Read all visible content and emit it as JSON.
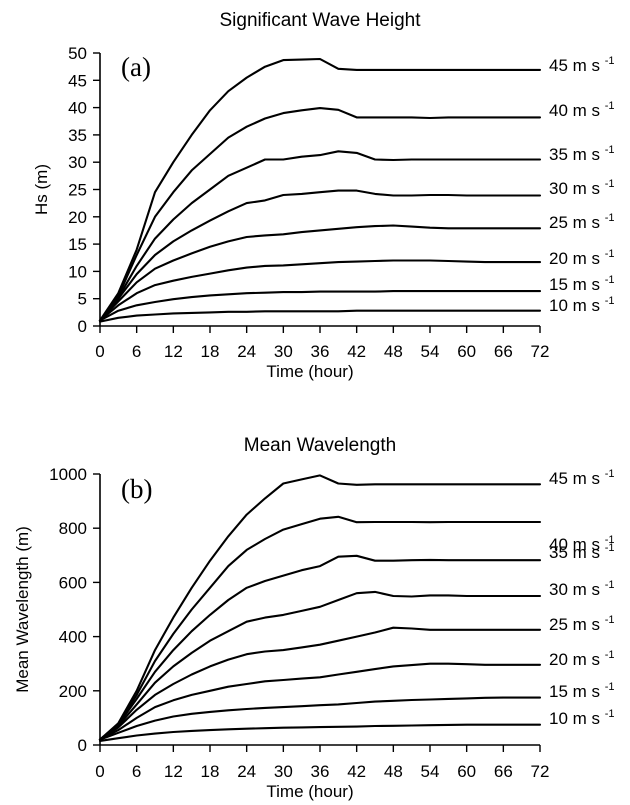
{
  "chart_data": [
    {
      "type": "line",
      "title": "Significant Wave Height",
      "panel_label": "(a)",
      "xlabel": "Time (hour)",
      "ylabel": "Hs (m)",
      "xlim": [
        0,
        72
      ],
      "ylim": [
        0,
        50
      ],
      "xticks": [
        0,
        6,
        12,
        18,
        24,
        30,
        36,
        42,
        48,
        54,
        60,
        66,
        72
      ],
      "yticks": [
        0,
        5,
        10,
        15,
        20,
        25,
        30,
        35,
        40,
        45,
        50
      ],
      "grid": false,
      "legend": "labels at right end of each line",
      "series": [
        {
          "name": "45 m s",
          "sup": "-1",
          "x": [
            0,
            3,
            6,
            9,
            12,
            15,
            18,
            21,
            24,
            27,
            30,
            33,
            36,
            39,
            42,
            45,
            48,
            51,
            54,
            57,
            60,
            63,
            66,
            69,
            72
          ],
          "y": [
            1,
            6,
            14,
            24.5,
            30,
            35,
            39.5,
            43,
            45.5,
            47.5,
            48.7,
            48.8,
            48.9,
            47.1,
            46.9,
            46.9,
            46.9,
            46.9,
            46.9,
            46.9,
            46.9,
            46.9,
            46.9,
            46.9,
            46.9
          ]
        },
        {
          "name": "40 m s",
          "sup": "-1",
          "x": [
            0,
            3,
            6,
            9,
            12,
            15,
            18,
            21,
            24,
            27,
            30,
            33,
            36,
            39,
            42,
            45,
            48,
            51,
            54,
            57,
            60,
            63,
            66,
            69,
            72
          ],
          "y": [
            1,
            5.5,
            13,
            20,
            24.5,
            28.5,
            31.5,
            34.5,
            36.5,
            38,
            39,
            39.5,
            39.9,
            39.6,
            38.2,
            38.2,
            38.2,
            38.2,
            38.1,
            38.2,
            38.2,
            38.2,
            38.2,
            38.2,
            38.2
          ]
        },
        {
          "name": "35 m s",
          "sup": "-1",
          "x": [
            0,
            3,
            6,
            9,
            12,
            15,
            18,
            21,
            24,
            27,
            30,
            33,
            36,
            39,
            42,
            45,
            48,
            51,
            54,
            57,
            60,
            63,
            66,
            69,
            72
          ],
          "y": [
            1,
            5.2,
            11,
            16,
            19.5,
            22.5,
            25,
            27.5,
            29,
            30.5,
            30.5,
            31,
            31.3,
            32,
            31.7,
            30.5,
            30.4,
            30.5,
            30.5,
            30.5,
            30.5,
            30.5,
            30.5,
            30.5,
            30.5
          ]
        },
        {
          "name": "30 m s",
          "sup": "-1",
          "x": [
            0,
            3,
            6,
            9,
            12,
            15,
            18,
            21,
            24,
            27,
            30,
            33,
            36,
            39,
            42,
            45,
            48,
            51,
            54,
            57,
            60,
            63,
            66,
            69,
            72
          ],
          "y": [
            1,
            5,
            9.5,
            13,
            15.5,
            17.5,
            19.3,
            21,
            22.5,
            23,
            24,
            24.2,
            24.5,
            24.8,
            24.8,
            24.2,
            23.9,
            23.9,
            24,
            24,
            23.9,
            23.9,
            23.9,
            23.9,
            23.9
          ]
        },
        {
          "name": "25 m s",
          "sup": "-1",
          "x": [
            0,
            3,
            6,
            9,
            12,
            15,
            18,
            21,
            24,
            27,
            30,
            33,
            36,
            39,
            42,
            45,
            48,
            51,
            54,
            57,
            60,
            63,
            66,
            69,
            72
          ],
          "y": [
            1,
            4.5,
            8,
            10.5,
            12,
            13.3,
            14.5,
            15.5,
            16.3,
            16.6,
            16.8,
            17.2,
            17.5,
            17.8,
            18.1,
            18.3,
            18.4,
            18.2,
            18,
            17.9,
            17.9,
            17.9,
            17.9,
            17.9,
            17.9
          ]
        },
        {
          "name": "20 m s",
          "sup": "-1",
          "x": [
            0,
            3,
            6,
            9,
            12,
            15,
            18,
            21,
            24,
            27,
            30,
            33,
            36,
            39,
            42,
            45,
            48,
            51,
            54,
            57,
            60,
            63,
            66,
            69,
            72
          ],
          "y": [
            1,
            3.8,
            6,
            7.5,
            8.3,
            9,
            9.6,
            10.2,
            10.7,
            11,
            11.1,
            11.3,
            11.5,
            11.7,
            11.8,
            11.9,
            12,
            12,
            12,
            11.9,
            11.8,
            11.7,
            11.7,
            11.7,
            11.7
          ]
        },
        {
          "name": "15 m s",
          "sup": "-1",
          "x": [
            0,
            3,
            6,
            9,
            12,
            15,
            18,
            21,
            24,
            27,
            30,
            33,
            36,
            39,
            42,
            45,
            48,
            51,
            54,
            57,
            60,
            63,
            66,
            69,
            72
          ],
          "y": [
            1,
            2.8,
            3.8,
            4.4,
            4.9,
            5.3,
            5.6,
            5.8,
            6,
            6.1,
            6.2,
            6.2,
            6.3,
            6.3,
            6.3,
            6.3,
            6.4,
            6.4,
            6.4,
            6.4,
            6.4,
            6.4,
            6.4,
            6.4,
            6.4
          ]
        },
        {
          "name": "10 m s",
          "sup": "-1",
          "x": [
            0,
            3,
            6,
            9,
            12,
            15,
            18,
            21,
            24,
            27,
            30,
            33,
            36,
            39,
            42,
            45,
            48,
            51,
            54,
            57,
            60,
            63,
            66,
            69,
            72
          ],
          "y": [
            0.8,
            1.5,
            1.9,
            2.1,
            2.3,
            2.4,
            2.5,
            2.6,
            2.6,
            2.7,
            2.7,
            2.7,
            2.7,
            2.7,
            2.8,
            2.8,
            2.8,
            2.8,
            2.8,
            2.8,
            2.8,
            2.8,
            2.8,
            2.8,
            2.8
          ]
        }
      ]
    },
    {
      "type": "line",
      "title": "Mean Wavelength",
      "panel_label": "(b)",
      "xlabel": "Time (hour)",
      "ylabel": "Mean Wavelength (m)",
      "xlim": [
        0,
        72
      ],
      "ylim": [
        0,
        1000
      ],
      "xticks": [
        0,
        6,
        12,
        18,
        24,
        30,
        36,
        42,
        48,
        54,
        60,
        66,
        72
      ],
      "yticks": [
        0,
        200,
        400,
        600,
        800,
        1000
      ],
      "grid": false,
      "legend": "labels at right end of each line",
      "series": [
        {
          "name": "45 m s",
          "sup": "-1",
          "x": [
            0,
            3,
            6,
            9,
            12,
            15,
            18,
            21,
            24,
            27,
            30,
            33,
            36,
            39,
            42,
            45,
            48,
            51,
            54,
            57,
            60,
            63,
            66,
            69,
            72
          ],
          "y": [
            20,
            80,
            200,
            350,
            470,
            580,
            680,
            770,
            850,
            910,
            965,
            980,
            995,
            965,
            960,
            962,
            962,
            962,
            962,
            962,
            962,
            962,
            962,
            962,
            962
          ]
        },
        {
          "name": "40 m s",
          "sup": "-1",
          "x": [
            0,
            3,
            6,
            9,
            12,
            15,
            18,
            21,
            24,
            27,
            30,
            33,
            36,
            39,
            42,
            45,
            48,
            51,
            54,
            57,
            60,
            63,
            66,
            69,
            72
          ],
          "y": [
            20,
            78,
            185,
            310,
            410,
            500,
            580,
            660,
            720,
            760,
            795,
            815,
            835,
            842,
            822,
            823,
            823,
            823,
            822,
            823,
            823,
            823,
            823,
            823,
            823
          ]
        },
        {
          "name": "35 m s",
          "sup": "-1",
          "x": [
            0,
            3,
            6,
            9,
            12,
            15,
            18,
            21,
            24,
            27,
            30,
            33,
            36,
            39,
            42,
            45,
            48,
            51,
            54,
            57,
            60,
            63,
            66,
            69,
            72
          ],
          "y": [
            20,
            75,
            170,
            270,
            350,
            420,
            480,
            535,
            580,
            605,
            625,
            645,
            660,
            695,
            698,
            680,
            680,
            682,
            683,
            682,
            682,
            682,
            682,
            682,
            682
          ]
        },
        {
          "name": "30 m s",
          "sup": "-1",
          "x": [
            0,
            3,
            6,
            9,
            12,
            15,
            18,
            21,
            24,
            27,
            30,
            33,
            36,
            39,
            42,
            45,
            48,
            51,
            54,
            57,
            60,
            63,
            66,
            69,
            72
          ],
          "y": [
            20,
            70,
            150,
            230,
            290,
            340,
            385,
            420,
            455,
            470,
            480,
            495,
            510,
            535,
            560,
            565,
            550,
            548,
            552,
            552,
            550,
            550,
            550,
            550,
            550
          ]
        },
        {
          "name": "25 m s",
          "sup": "-1",
          "x": [
            0,
            3,
            6,
            9,
            12,
            15,
            18,
            21,
            24,
            27,
            30,
            33,
            36,
            39,
            42,
            45,
            48,
            51,
            54,
            57,
            60,
            63,
            66,
            69,
            72
          ],
          "y": [
            20,
            65,
            130,
            185,
            225,
            260,
            290,
            315,
            335,
            345,
            350,
            360,
            370,
            385,
            400,
            415,
            433,
            430,
            425,
            425,
            425,
            425,
            425,
            425,
            425
          ]
        },
        {
          "name": "20 m s",
          "sup": "-1",
          "x": [
            0,
            3,
            6,
            9,
            12,
            15,
            18,
            21,
            24,
            27,
            30,
            33,
            36,
            39,
            42,
            45,
            48,
            51,
            54,
            57,
            60,
            63,
            66,
            69,
            72
          ],
          "y": [
            20,
            55,
            100,
            140,
            165,
            185,
            200,
            215,
            225,
            235,
            240,
            245,
            250,
            260,
            270,
            280,
            290,
            295,
            300,
            300,
            298,
            296,
            296,
            296,
            296
          ]
        },
        {
          "name": "15 m s",
          "sup": "-1",
          "x": [
            0,
            3,
            6,
            9,
            12,
            15,
            18,
            21,
            24,
            27,
            30,
            33,
            36,
            39,
            42,
            45,
            48,
            51,
            54,
            57,
            60,
            63,
            66,
            69,
            72
          ],
          "y": [
            20,
            45,
            70,
            90,
            105,
            115,
            122,
            128,
            133,
            137,
            140,
            143,
            147,
            150,
            155,
            160,
            163,
            166,
            168,
            170,
            172,
            174,
            175,
            175,
            175
          ]
        },
        {
          "name": "10 m s",
          "sup": "-1",
          "x": [
            0,
            3,
            6,
            9,
            12,
            15,
            18,
            21,
            24,
            27,
            30,
            33,
            36,
            39,
            42,
            45,
            48,
            51,
            54,
            57,
            60,
            63,
            66,
            69,
            72
          ],
          "y": [
            15,
            25,
            35,
            42,
            48,
            52,
            55,
            58,
            60,
            62,
            64,
            65,
            66,
            67,
            68,
            70,
            71,
            72,
            73,
            74,
            75,
            75,
            75,
            75,
            75
          ]
        }
      ]
    }
  ]
}
